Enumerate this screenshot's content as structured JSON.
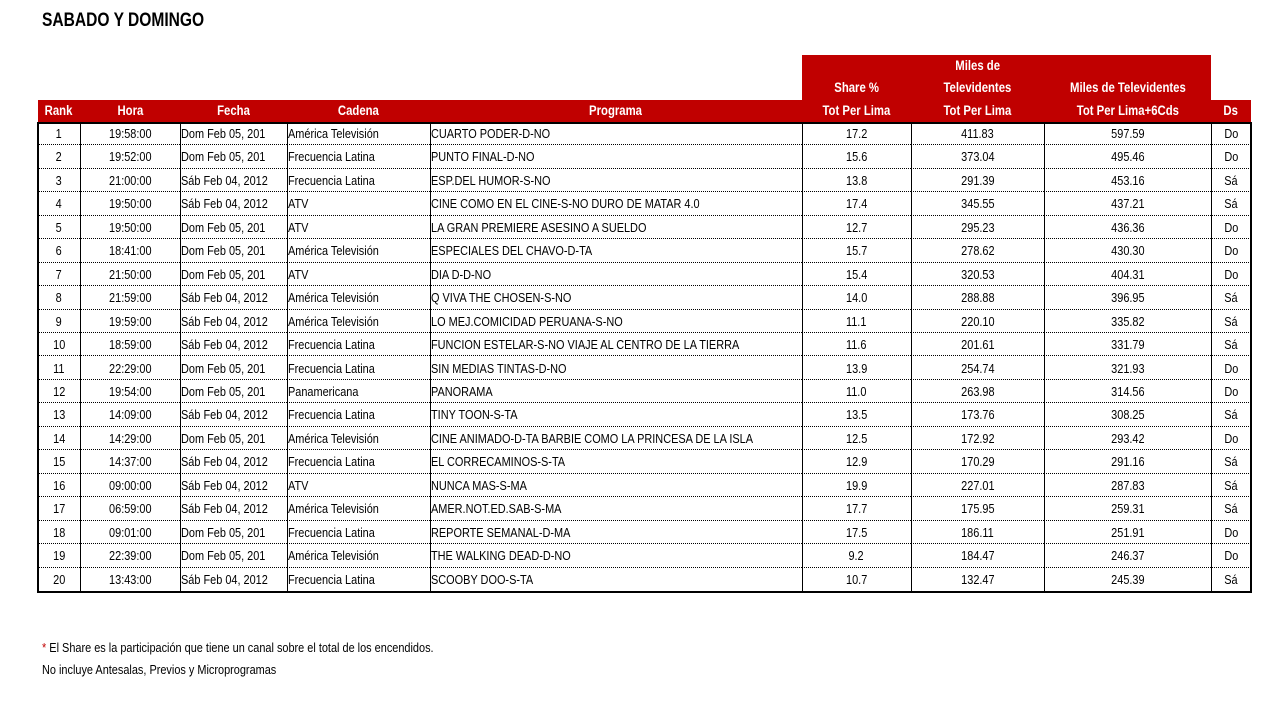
{
  "title": "SABADO Y DOMINGO",
  "table": {
    "columns": [
      [
        "Rank"
      ],
      [
        "Hora"
      ],
      [
        "Fecha"
      ],
      [
        "Cadena"
      ],
      [
        "Programa"
      ],
      [
        "Share %",
        "Tot Per Lima"
      ],
      [
        "Miles de",
        "Televidentes",
        "Tot Per Lima"
      ],
      [
        "Miles de Televidentes",
        "Tot Per Lima+6Cds"
      ],
      [
        "Ds"
      ]
    ],
    "rows": [
      [
        "1",
        "19:58:00",
        "Dom Feb 05, 201",
        "América Televisión",
        "CUARTO PODER-D-NO",
        "17.2",
        "411.83",
        "597.59",
        "Do"
      ],
      [
        "2",
        "19:52:00",
        "Dom Feb 05, 201",
        "Frecuencia Latina",
        "PUNTO FINAL-D-NO",
        "15.6",
        "373.04",
        "495.46",
        "Do"
      ],
      [
        "3",
        "21:00:00",
        "Sáb Feb 04, 2012",
        "Frecuencia Latina",
        "ESP.DEL HUMOR-S-NO",
        "13.8",
        "291.39",
        "453.16",
        "Sá"
      ],
      [
        "4",
        "19:50:00",
        "Sáb Feb 04, 2012",
        "ATV",
        "CINE COMO EN EL CINE-S-NO DURO DE MATAR 4.0",
        "17.4",
        "345.55",
        "437.21",
        "Sá"
      ],
      [
        "5",
        "19:50:00",
        "Dom Feb 05, 201",
        "ATV",
        "LA GRAN PREMIERE ASESINO A SUELDO",
        "12.7",
        "295.23",
        "436.36",
        "Do"
      ],
      [
        "6",
        "18:41:00",
        "Dom Feb 05, 201",
        "América Televisión",
        "ESPECIALES DEL CHAVO-D-TA",
        "15.7",
        "278.62",
        "430.30",
        "Do"
      ],
      [
        "7",
        "21:50:00",
        "Dom Feb 05, 201",
        "ATV",
        "DIA D-D-NO",
        "15.4",
        "320.53",
        "404.31",
        "Do"
      ],
      [
        "8",
        "21:59:00",
        "Sáb Feb 04, 2012",
        "América Televisión",
        "Q VIVA THE CHOSEN-S-NO",
        "14.0",
        "288.88",
        "396.95",
        "Sá"
      ],
      [
        "9",
        "19:59:00",
        "Sáb Feb 04, 2012",
        "América Televisión",
        "LO MEJ.COMICIDAD PERUANA-S-NO",
        "11.1",
        "220.10",
        "335.82",
        "Sá"
      ],
      [
        "10",
        "18:59:00",
        "Sáb Feb 04, 2012",
        "Frecuencia Latina",
        "FUNCION ESTELAR-S-NO VIAJE AL CENTRO DE LA TIERRA",
        "11.6",
        "201.61",
        "331.79",
        "Sá"
      ],
      [
        "11",
        "22:29:00",
        "Dom Feb 05, 201",
        "Frecuencia Latina",
        "SIN MEDIAS TINTAS-D-NO",
        "13.9",
        "254.74",
        "321.93",
        "Do"
      ],
      [
        "12",
        "19:54:00",
        "Dom Feb 05, 201",
        "Panamericana",
        "PANORAMA",
        "11.0",
        "263.98",
        "314.56",
        "Do"
      ],
      [
        "13",
        "14:09:00",
        "Sáb Feb 04, 2012",
        "Frecuencia Latina",
        "TINY TOON-S-TA",
        "13.5",
        "173.76",
        "308.25",
        "Sá"
      ],
      [
        "14",
        "14:29:00",
        "Dom Feb 05, 201",
        "América Televisión",
        "CINE ANIMADO-D-TA BARBIE COMO LA PRINCESA DE LA ISLA",
        "12.5",
        "172.92",
        "293.42",
        "Do"
      ],
      [
        "15",
        "14:37:00",
        "Sáb Feb 04, 2012",
        "Frecuencia Latina",
        "EL CORRECAMINOS-S-TA",
        "12.9",
        "170.29",
        "291.16",
        "Sá"
      ],
      [
        "16",
        "09:00:00",
        "Sáb Feb 04, 2012",
        "ATV",
        "NUNCA MAS-S-MA",
        "19.9",
        "227.01",
        "287.83",
        "Sá"
      ],
      [
        "17",
        "06:59:00",
        "Sáb Feb 04, 2012",
        "América Televisión",
        "AMER.NOT.ED.SAB-S-MA",
        "17.7",
        "175.95",
        "259.31",
        "Sá"
      ],
      [
        "18",
        "09:01:00",
        "Dom Feb 05, 201",
        "Frecuencia Latina",
        "REPORTE SEMANAL-D-MA",
        "17.5",
        "186.11",
        "251.91",
        "Do"
      ],
      [
        "19",
        "22:39:00",
        "Dom Feb 05, 201",
        "América Televisión",
        "THE WALKING DEAD-D-NO",
        "9.2",
        "184.47",
        "246.37",
        "Do"
      ],
      [
        "20",
        "13:43:00",
        "Sáb Feb 04, 2012",
        "Frecuencia Latina",
        "SCOOBY DOO-S-TA",
        "10.7",
        "132.47",
        "245.39",
        "Sá"
      ]
    ]
  },
  "footnotes": {
    "marker": "*",
    "note": "El Share es la participación que tiene un canal sobre el total de los encendidos.",
    "line2": "No incluye Antesalas, Previos y Microprogramas"
  }
}
